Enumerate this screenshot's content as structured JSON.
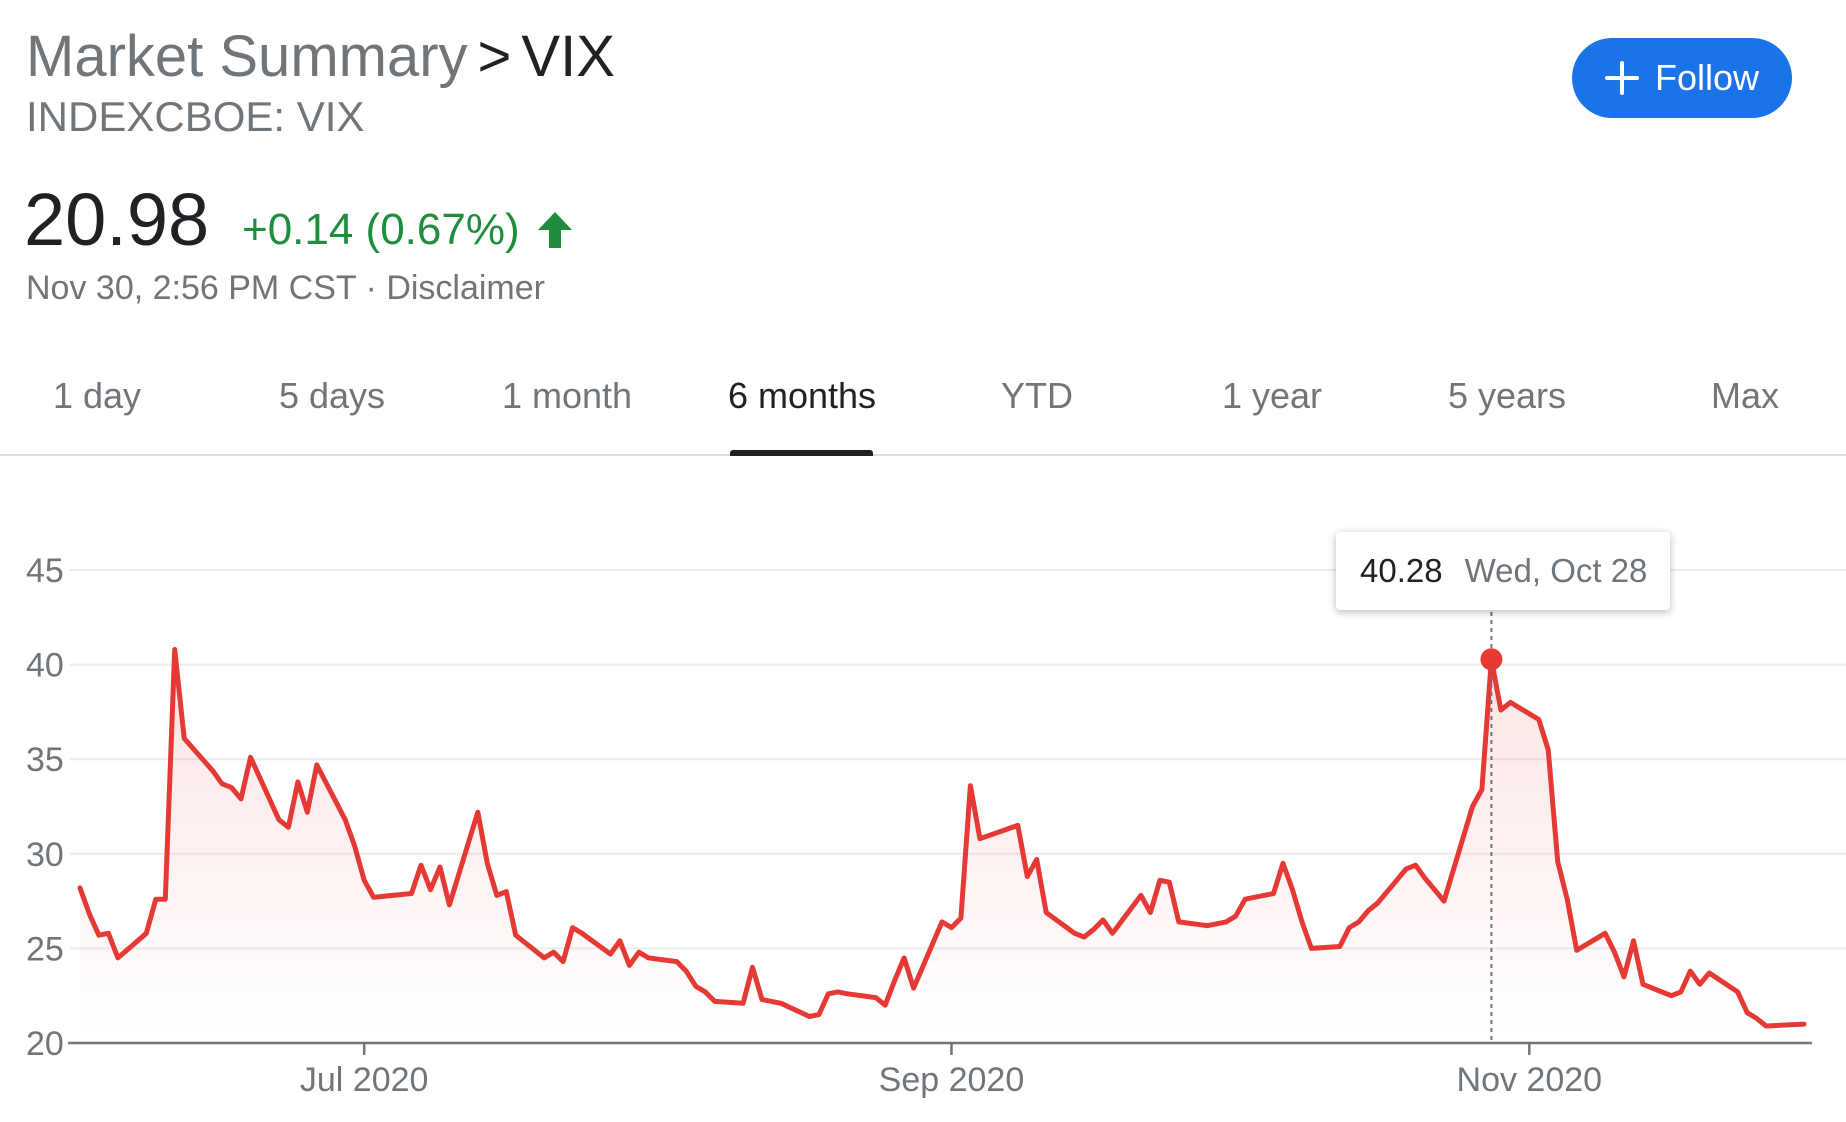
{
  "header": {
    "crumb": "Market Summary",
    "separator": ">",
    "symbol": "VIX",
    "exchange": "INDEXCBOE: VIX",
    "follow_label": "Follow"
  },
  "quote": {
    "price": "20.98",
    "change": "+0.14 (0.67%)",
    "direction": "up",
    "timestamp": "Nov 30, 2:56 PM CST",
    "separator": "·",
    "disclaimer": "Disclaimer"
  },
  "tabs": [
    {
      "label": "1 day"
    },
    {
      "label": "5 days"
    },
    {
      "label": "1 month"
    },
    {
      "label": "6 months",
      "active": true
    },
    {
      "label": "YTD"
    },
    {
      "label": "1 year"
    },
    {
      "label": "5 years"
    },
    {
      "label": "Max"
    }
  ],
  "tooltip": {
    "value": "40.28",
    "date": "Wed, Oct 28"
  },
  "colors": {
    "line": "#e53935",
    "positive": "#1e8e3e",
    "accent": "#1a73e8"
  },
  "chart_data": {
    "type": "line",
    "title": "",
    "xlabel": "",
    "ylabel": "",
    "ylim": [
      20,
      45
    ],
    "yticks": [
      20,
      25,
      30,
      35,
      40,
      45
    ],
    "xticks": [
      {
        "date": "2020-07-01",
        "label": "Jul 2020"
      },
      {
        "date": "2020-09-01",
        "label": "Sep 2020"
      },
      {
        "date": "2020-11-01",
        "label": "Nov 2020"
      }
    ],
    "xlim": [
      "2020-06-01",
      "2020-11-30"
    ],
    "highlight": {
      "date": "2020-10-28",
      "value": 40.28
    },
    "grid": true,
    "series": [
      {
        "points": [
          [
            "2020-06-01",
            28.2
          ],
          [
            "2020-06-02",
            26.8
          ],
          [
            "2020-06-03",
            25.7
          ],
          [
            "2020-06-04",
            25.8
          ],
          [
            "2020-06-05",
            24.5
          ],
          [
            "2020-06-08",
            25.8
          ],
          [
            "2020-06-09",
            27.6
          ],
          [
            "2020-06-10",
            27.6
          ],
          [
            "2020-06-11",
            40.8
          ],
          [
            "2020-06-12",
            36.1
          ],
          [
            "2020-06-15",
            34.4
          ],
          [
            "2020-06-16",
            33.7
          ],
          [
            "2020-06-17",
            33.5
          ],
          [
            "2020-06-18",
            32.9
          ],
          [
            "2020-06-19",
            35.1
          ],
          [
            "2020-06-22",
            31.8
          ],
          [
            "2020-06-23",
            31.4
          ],
          [
            "2020-06-24",
            33.8
          ],
          [
            "2020-06-25",
            32.2
          ],
          [
            "2020-06-26",
            34.7
          ],
          [
            "2020-06-29",
            31.8
          ],
          [
            "2020-06-30",
            30.4
          ],
          [
            "2020-07-01",
            28.6
          ],
          [
            "2020-07-02",
            27.7
          ],
          [
            "2020-07-06",
            27.9
          ],
          [
            "2020-07-07",
            29.4
          ],
          [
            "2020-07-08",
            28.1
          ],
          [
            "2020-07-09",
            29.3
          ],
          [
            "2020-07-10",
            27.3
          ],
          [
            "2020-07-13",
            32.2
          ],
          [
            "2020-07-14",
            29.5
          ],
          [
            "2020-07-15",
            27.8
          ],
          [
            "2020-07-16",
            28.0
          ],
          [
            "2020-07-17",
            25.7
          ],
          [
            "2020-07-20",
            24.5
          ],
          [
            "2020-07-21",
            24.8
          ],
          [
            "2020-07-22",
            24.3
          ],
          [
            "2020-07-23",
            26.1
          ],
          [
            "2020-07-24",
            25.8
          ],
          [
            "2020-07-27",
            24.7
          ],
          [
            "2020-07-28",
            25.4
          ],
          [
            "2020-07-29",
            24.1
          ],
          [
            "2020-07-30",
            24.8
          ],
          [
            "2020-07-31",
            24.5
          ],
          [
            "2020-08-03",
            24.3
          ],
          [
            "2020-08-04",
            23.8
          ],
          [
            "2020-08-05",
            23.0
          ],
          [
            "2020-08-06",
            22.7
          ],
          [
            "2020-08-07",
            22.2
          ],
          [
            "2020-08-10",
            22.1
          ],
          [
            "2020-08-11",
            24.0
          ],
          [
            "2020-08-12",
            22.3
          ],
          [
            "2020-08-13",
            22.2
          ],
          [
            "2020-08-14",
            22.1
          ],
          [
            "2020-08-17",
            21.4
          ],
          [
            "2020-08-18",
            21.5
          ],
          [
            "2020-08-19",
            22.6
          ],
          [
            "2020-08-20",
            22.7
          ],
          [
            "2020-08-21",
            22.6
          ],
          [
            "2020-08-24",
            22.4
          ],
          [
            "2020-08-25",
            22.0
          ],
          [
            "2020-08-26",
            23.3
          ],
          [
            "2020-08-27",
            24.5
          ],
          [
            "2020-08-28",
            22.9
          ],
          [
            "2020-08-31",
            26.4
          ],
          [
            "2020-09-01",
            26.1
          ],
          [
            "2020-09-02",
            26.6
          ],
          [
            "2020-09-03",
            33.6
          ],
          [
            "2020-09-04",
            30.8
          ],
          [
            "2020-09-08",
            31.5
          ],
          [
            "2020-09-09",
            28.8
          ],
          [
            "2020-09-10",
            29.7
          ],
          [
            "2020-09-11",
            26.9
          ],
          [
            "2020-09-14",
            25.8
          ],
          [
            "2020-09-15",
            25.6
          ],
          [
            "2020-09-16",
            26.0
          ],
          [
            "2020-09-17",
            26.5
          ],
          [
            "2020-09-18",
            25.8
          ],
          [
            "2020-09-21",
            27.8
          ],
          [
            "2020-09-22",
            26.9
          ],
          [
            "2020-09-23",
            28.6
          ],
          [
            "2020-09-24",
            28.5
          ],
          [
            "2020-09-25",
            26.4
          ],
          [
            "2020-09-28",
            26.2
          ],
          [
            "2020-09-29",
            26.3
          ],
          [
            "2020-09-30",
            26.4
          ],
          [
            "2020-10-01",
            26.7
          ],
          [
            "2020-10-02",
            27.6
          ],
          [
            "2020-10-05",
            27.9
          ],
          [
            "2020-10-06",
            29.5
          ],
          [
            "2020-10-07",
            28.1
          ],
          [
            "2020-10-08",
            26.4
          ],
          [
            "2020-10-09",
            25.0
          ],
          [
            "2020-10-12",
            25.1
          ],
          [
            "2020-10-13",
            26.1
          ],
          [
            "2020-10-14",
            26.4
          ],
          [
            "2020-10-15",
            27.0
          ],
          [
            "2020-10-16",
            27.4
          ],
          [
            "2020-10-19",
            29.2
          ],
          [
            "2020-10-20",
            29.4
          ],
          [
            "2020-10-21",
            28.7
          ],
          [
            "2020-10-22",
            28.1
          ],
          [
            "2020-10-23",
            27.5
          ],
          [
            "2020-10-26",
            32.5
          ],
          [
            "2020-10-27",
            33.4
          ],
          [
            "2020-10-28",
            40.28
          ],
          [
            "2020-10-29",
            37.6
          ],
          [
            "2020-10-30",
            38.0
          ],
          [
            "2020-11-02",
            37.1
          ],
          [
            "2020-11-03",
            35.5
          ],
          [
            "2020-11-04",
            29.6
          ],
          [
            "2020-11-05",
            27.6
          ],
          [
            "2020-11-06",
            24.9
          ],
          [
            "2020-11-09",
            25.8
          ],
          [
            "2020-11-10",
            24.8
          ],
          [
            "2020-11-11",
            23.5
          ],
          [
            "2020-11-12",
            25.4
          ],
          [
            "2020-11-13",
            23.1
          ],
          [
            "2020-11-16",
            22.5
          ],
          [
            "2020-11-17",
            22.7
          ],
          [
            "2020-11-18",
            23.8
          ],
          [
            "2020-11-19",
            23.1
          ],
          [
            "2020-11-20",
            23.7
          ],
          [
            "2020-11-23",
            22.7
          ],
          [
            "2020-11-24",
            21.6
          ],
          [
            "2020-11-25",
            21.3
          ],
          [
            "2020-11-26",
            20.9
          ],
          [
            "2020-11-30",
            21.0
          ]
        ]
      }
    ]
  }
}
